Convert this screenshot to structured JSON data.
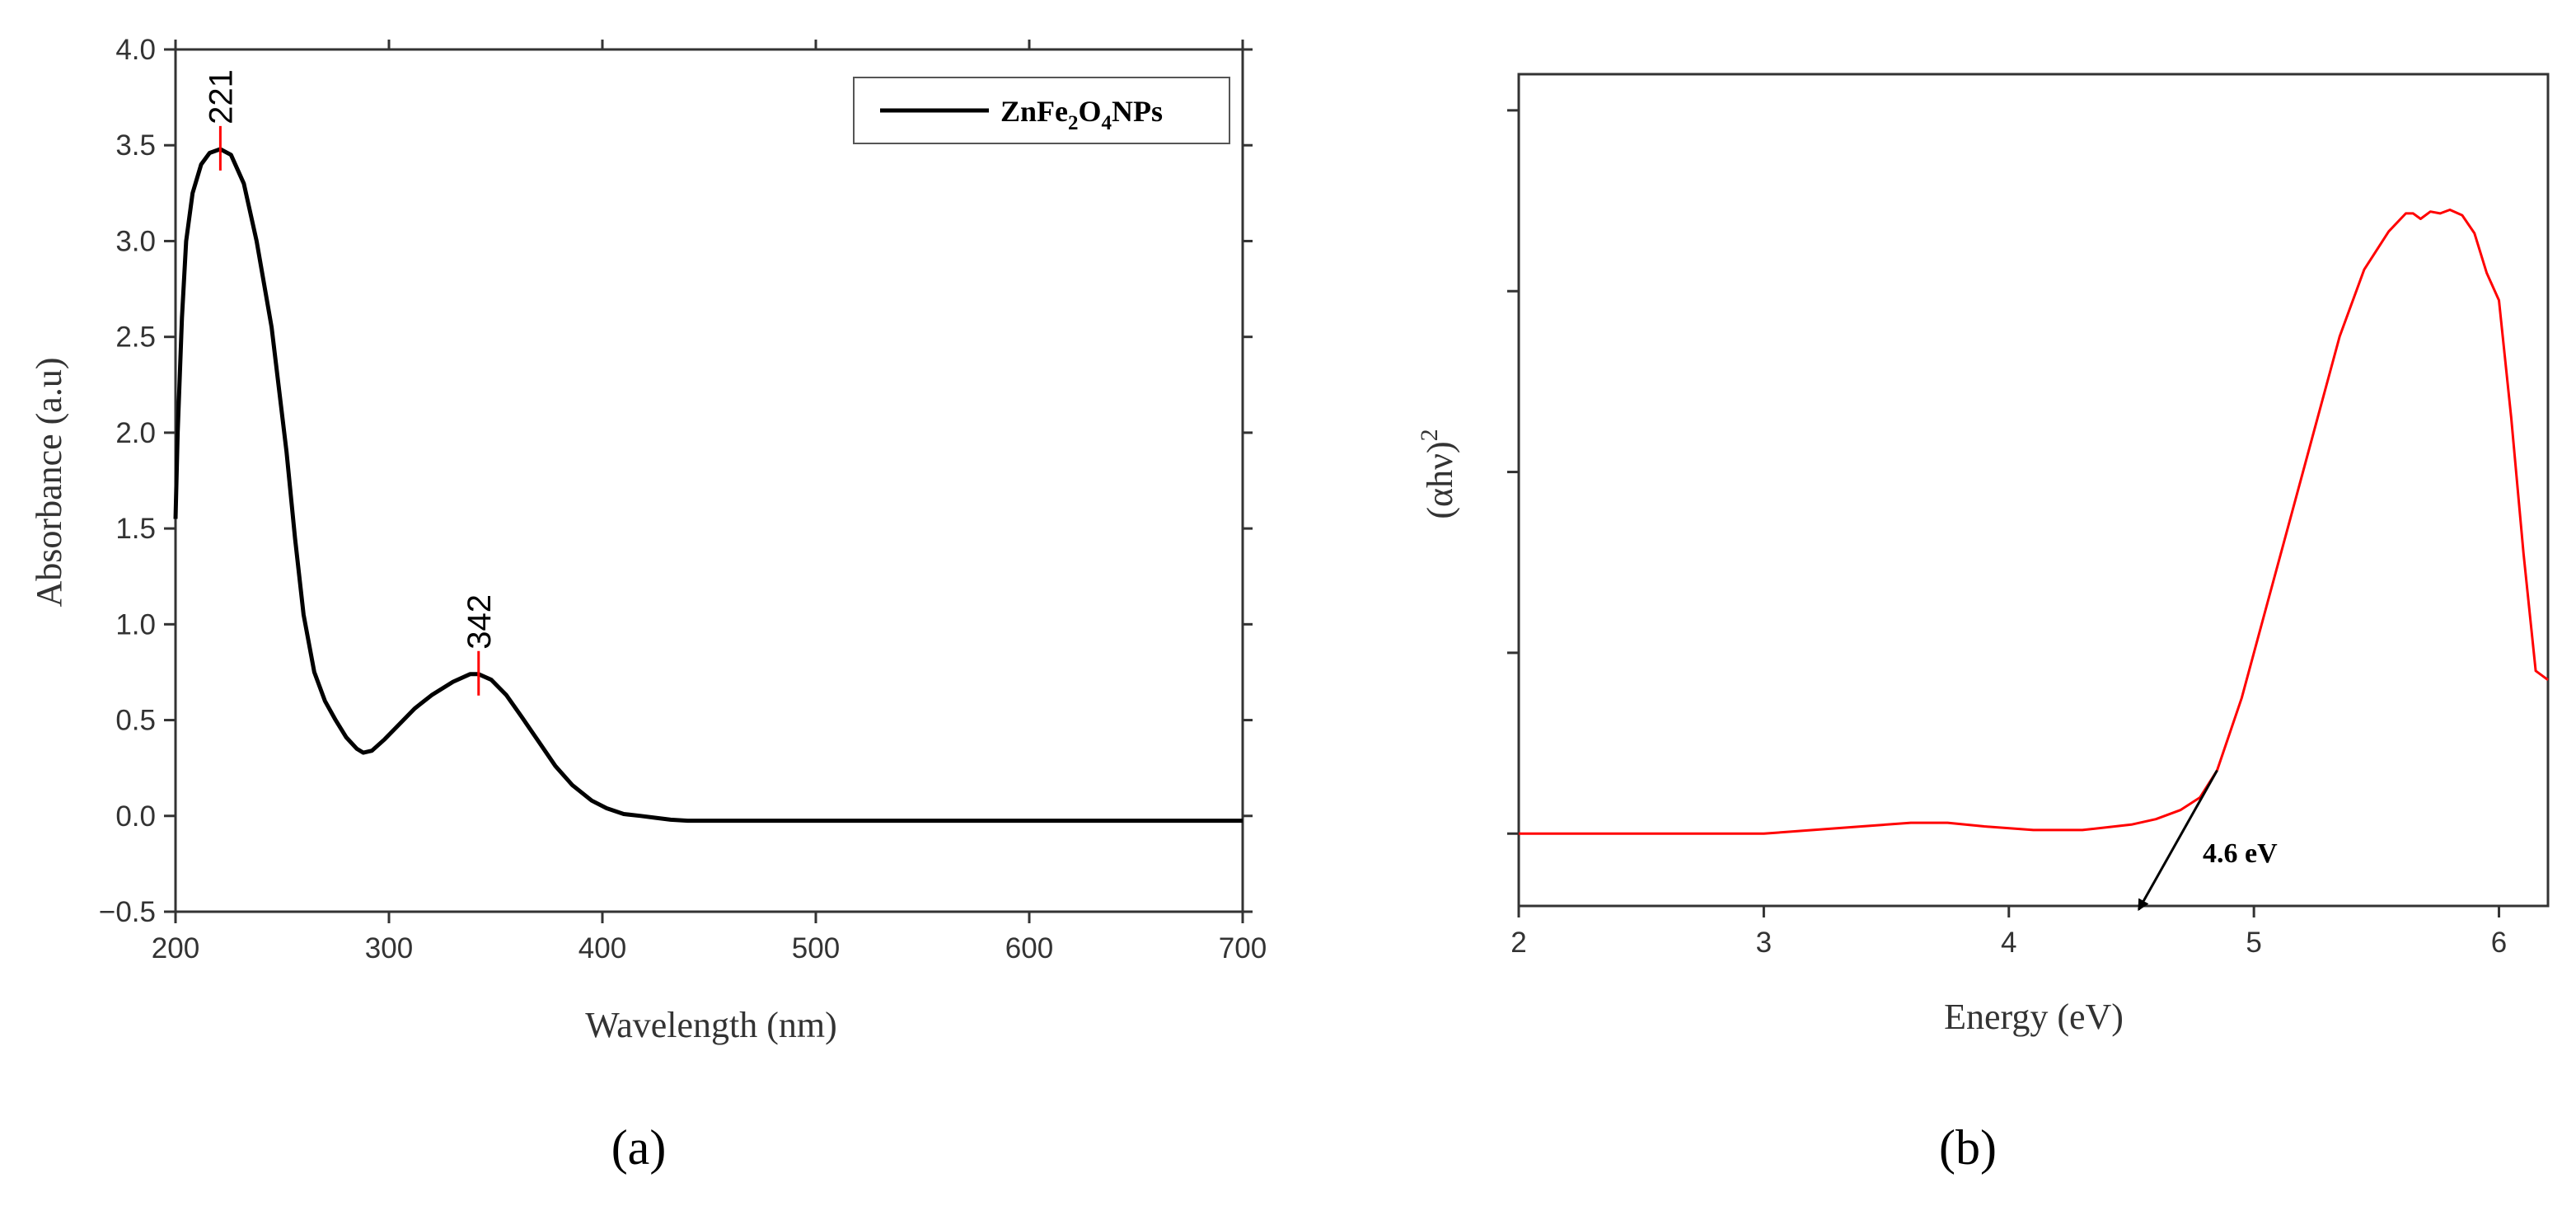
{
  "colors": {
    "series_a": "#000000",
    "series_b": "#ff0000",
    "peak_marker": "#ff0000",
    "axis": "#333333"
  },
  "chart_data": [
    {
      "panel_label": "(a)",
      "type": "line",
      "xlabel": "Wavelength (nm)",
      "ylabel": "Absorbance (a.u)",
      "xlim": [
        200,
        700
      ],
      "ylim": [
        -0.5,
        4.0
      ],
      "x_ticks": [
        {
          "value": 200,
          "label": "200"
        },
        {
          "value": 300,
          "label": "300"
        },
        {
          "value": 400,
          "label": "400"
        },
        {
          "value": 500,
          "label": "500"
        },
        {
          "value": 600,
          "label": "600"
        },
        {
          "value": 700,
          "label": "700"
        }
      ],
      "y_ticks": [
        {
          "value": -0.5,
          "label": "−0.5"
        },
        {
          "value": 0.0,
          "label": "0.0"
        },
        {
          "value": 0.5,
          "label": "0.5"
        },
        {
          "value": 1.0,
          "label": "1.0"
        },
        {
          "value": 1.5,
          "label": "1.5"
        },
        {
          "value": 2.0,
          "label": "2.0"
        },
        {
          "value": 2.5,
          "label": "2.5"
        },
        {
          "value": 3.0,
          "label": "3.0"
        },
        {
          "value": 3.5,
          "label": "3.5"
        },
        {
          "value": 4.0,
          "label": "4.0"
        }
      ],
      "legend": {
        "position": "top-right",
        "label": {
          "main": "ZnFe",
          "sub1": "2",
          "mid": "O",
          "sub2": "4",
          "tail": "NPs"
        }
      },
      "grid": false,
      "series": [
        {
          "name": "ZnFe2O4 NPs",
          "x": [
            200,
            201,
            203,
            205,
            208,
            212,
            216,
            221,
            226,
            232,
            238,
            245,
            252,
            256,
            260,
            265,
            270,
            275,
            280,
            285,
            288,
            292,
            298,
            305,
            312,
            320,
            330,
            338,
            342,
            348,
            355,
            362,
            370,
            378,
            386,
            395,
            402,
            410,
            418,
            425,
            432,
            440,
            450,
            470,
            500,
            550,
            600,
            650,
            700
          ],
          "y": [
            1.55,
            2.0,
            2.6,
            3.0,
            3.25,
            3.4,
            3.46,
            3.48,
            3.45,
            3.3,
            3.0,
            2.55,
            1.9,
            1.45,
            1.05,
            0.75,
            0.6,
            0.5,
            0.41,
            0.35,
            0.33,
            0.34,
            0.4,
            0.48,
            0.56,
            0.63,
            0.7,
            0.74,
            0.74,
            0.71,
            0.63,
            0.52,
            0.39,
            0.26,
            0.16,
            0.08,
            0.04,
            0.01,
            0.0,
            -0.01,
            -0.02,
            -0.025,
            -0.025,
            -0.025,
            -0.025,
            -0.025,
            -0.025,
            -0.025,
            -0.025
          ]
        }
      ],
      "peaks": [
        {
          "x": 221,
          "y": 3.48,
          "label": "221"
        },
        {
          "x": 342,
          "y": 0.74,
          "label": "342"
        }
      ]
    },
    {
      "panel_label": "(b)",
      "type": "line",
      "xlabel": "Energy (eV)",
      "ylabel_base": "(αhν)",
      "ylabel_sup": "2",
      "xlim": [
        2,
        6.2
      ],
      "ylim": [
        -0.4,
        4.2
      ],
      "y_ticks_unlabeled": [
        0,
        1,
        2,
        3,
        4
      ],
      "x_ticks": [
        {
          "value": 2,
          "label": "2"
        },
        {
          "value": 3,
          "label": "3"
        },
        {
          "value": 4,
          "label": "4"
        },
        {
          "value": 5,
          "label": "5"
        },
        {
          "value": 6,
          "label": "6"
        }
      ],
      "grid": false,
      "series": [
        {
          "name": "",
          "x": [
            2.0,
            2.5,
            3.0,
            3.2,
            3.4,
            3.6,
            3.75,
            3.9,
            4.1,
            4.3,
            4.5,
            4.6,
            4.7,
            4.78,
            4.85,
            4.95,
            5.05,
            5.15,
            5.25,
            5.35,
            5.45,
            5.55,
            5.62,
            5.65,
            5.68,
            5.72,
            5.76,
            5.8,
            5.85,
            5.9,
            5.95,
            6.0,
            6.05,
            6.1,
            6.15,
            6.2
          ],
          "y": [
            0.0,
            0.0,
            0.0,
            0.02,
            0.04,
            0.06,
            0.06,
            0.04,
            0.02,
            0.02,
            0.05,
            0.08,
            0.13,
            0.2,
            0.35,
            0.75,
            1.25,
            1.75,
            2.25,
            2.75,
            3.12,
            3.33,
            3.43,
            3.43,
            3.4,
            3.44,
            3.43,
            3.45,
            3.42,
            3.32,
            3.1,
            2.95,
            2.3,
            1.55,
            0.9,
            0.85
          ]
        }
      ],
      "annotation": {
        "label": "4.6 eV",
        "arrow_from": {
          "x": 4.85,
          "y": 0.35
        },
        "arrow_to": {
          "x": 4.53,
          "y": -0.42
        }
      }
    }
  ]
}
